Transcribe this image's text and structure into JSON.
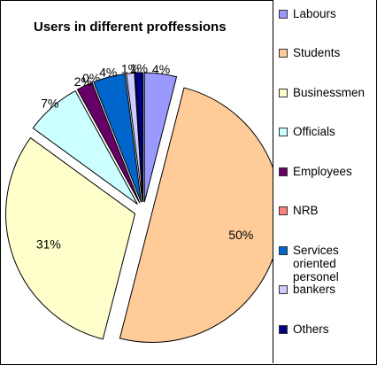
{
  "chart_data": {
    "type": "pie",
    "title": "Users in different proffessions",
    "legend_position": "right",
    "slices": [
      {
        "name": "Labours",
        "value": 4,
        "label": "4%",
        "color": "#9999ff"
      },
      {
        "name": "Students",
        "value": 50,
        "label": "50%",
        "color": "#ffcc99"
      },
      {
        "name": "Businessmen",
        "value": 31,
        "label": "31%",
        "color": "#ffffcc"
      },
      {
        "name": "Officials",
        "value": 7,
        "label": "7%",
        "color": "#ccffff"
      },
      {
        "name": "Employees",
        "value": 2,
        "label": "2%",
        "color": "#660066"
      },
      {
        "name": "NRB",
        "value": 0,
        "label": "0%",
        "color": "#ff8080"
      },
      {
        "name": "Services oriented personel",
        "value": 4,
        "label": "4%",
        "color": "#0066cc"
      },
      {
        "name": "bankers",
        "value": 1,
        "label": "1%",
        "color": "#ccccff"
      },
      {
        "name": "Others",
        "value": 1,
        "label": "1%",
        "color": "#000080"
      }
    ]
  }
}
